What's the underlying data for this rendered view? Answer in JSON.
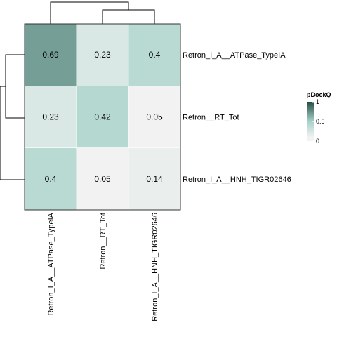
{
  "chart_data": {
    "type": "heatmap",
    "rows": [
      "Retron_I_A__ATPase_TypeIA",
      "Retron__RT_Tot",
      "Retron_I_A__HNH_TIGR02646"
    ],
    "columns": [
      "Retron_I_A__ATPase_TypeIA",
      "Retron__RT_Tot",
      "Retron_I_A__HNH_TIGR02646"
    ],
    "values": [
      [
        0.69,
        0.23,
        0.4
      ],
      [
        0.23,
        0.42,
        0.05
      ],
      [
        0.4,
        0.05,
        0.14
      ]
    ],
    "cell_labels": [
      [
        "0.69",
        "0.23",
        "0.4"
      ],
      [
        "0.23",
        "0.42",
        "0.05"
      ],
      [
        "0.4",
        "0.05",
        "0.14"
      ]
    ],
    "color_scale": {
      "title": "pDockQ",
      "stops": [
        {
          "value": 0,
          "color": "#f2f2f2"
        },
        {
          "value": 0.1,
          "color": "#f2f2f2"
        },
        {
          "value": 0.5,
          "color": "#a6d1c9"
        },
        {
          "value": 1,
          "color": "#264d44"
        }
      ],
      "ticks": [
        0,
        0.5,
        1
      ],
      "tick_labels": [
        "0",
        "0.5",
        "1"
      ]
    },
    "dendrograms": {
      "columns": "top",
      "rows": "left"
    }
  }
}
